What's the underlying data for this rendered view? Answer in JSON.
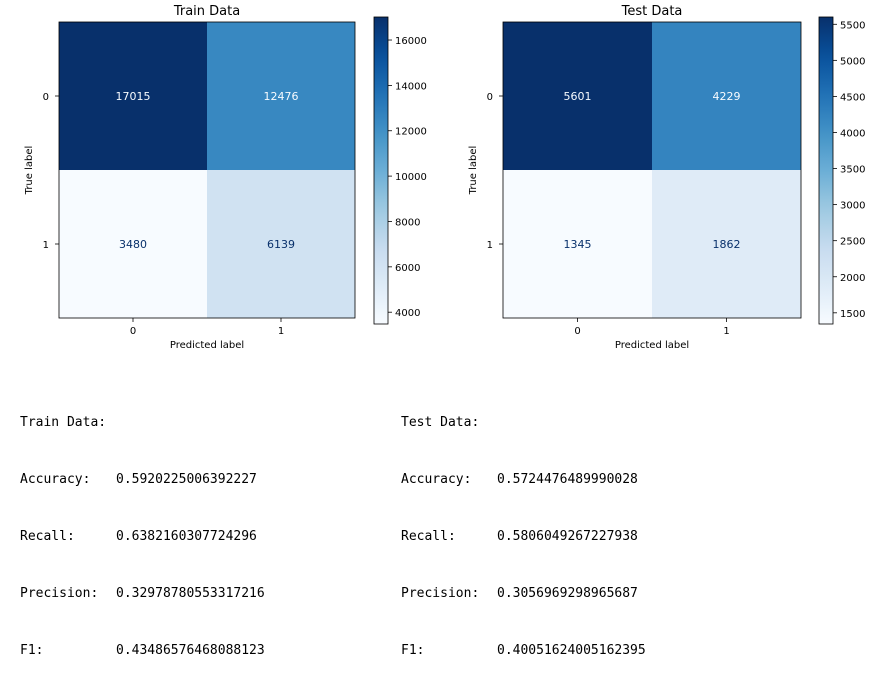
{
  "chart_data": [
    {
      "type": "heatmap",
      "title": "Train Data",
      "xlabel": "Predicted label",
      "ylabel": "True label",
      "x_categories": [
        "0",
        "1"
      ],
      "y_categories": [
        "0",
        "1"
      ],
      "values": [
        [
          17015,
          12476
        ],
        [
          3480,
          6139
        ]
      ],
      "colormap": "Blues",
      "colorbar_range": [
        3480,
        17015
      ],
      "colorbar_ticks": [
        4000,
        6000,
        8000,
        10000,
        12000,
        14000,
        16000
      ]
    },
    {
      "type": "heatmap",
      "title": "Test Data",
      "xlabel": "Predicted label",
      "ylabel": "True label",
      "x_categories": [
        "0",
        "1"
      ],
      "y_categories": [
        "0",
        "1"
      ],
      "values": [
        [
          5601,
          4229
        ],
        [
          1345,
          1862
        ]
      ],
      "colormap": "Blues",
      "colorbar_range": [
        1345,
        5601
      ],
      "colorbar_ticks": [
        1500,
        2000,
        2500,
        3000,
        3500,
        4000,
        4500,
        5000,
        5500
      ]
    }
  ],
  "metrics": {
    "train": {
      "header": "Train Data:",
      "rows": [
        {
          "label": "Accuracy:",
          "value": "0.5920225006392227"
        },
        {
          "label": "Recall:",
          "value": "0.6382160307724296"
        },
        {
          "label": "Precision:",
          "value": "0.32978780553317216"
        },
        {
          "label": "F1:",
          "value": "0.43486576468088123"
        }
      ]
    },
    "test": {
      "header": "Test Data:",
      "rows": [
        {
          "label": "Accuracy:",
          "value": "0.5724476489990028"
        },
        {
          "label": "Recall:",
          "value": "0.5806049267227938"
        },
        {
          "label": "Precision:",
          "value": "0.3056969298965687"
        },
        {
          "label": "F1:",
          "value": "0.40051624005162395"
        }
      ]
    }
  }
}
